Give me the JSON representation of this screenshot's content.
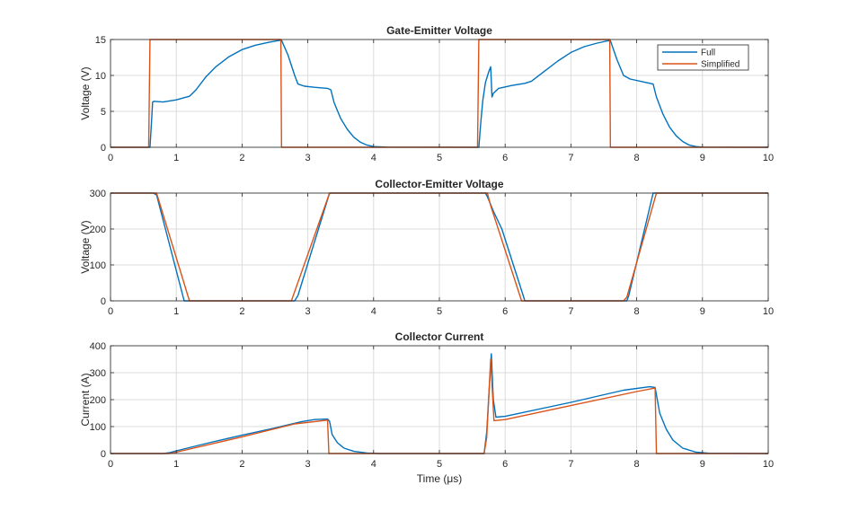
{
  "figure": {
    "series_names": [
      "Full",
      "Simplified"
    ],
    "colors": {
      "full": "#0072BD",
      "simplified": "#D95319",
      "grid": "#dcdcdc",
      "axis": "#262626"
    },
    "xlabel": "Time  (μs)"
  },
  "chart_data": [
    {
      "type": "line",
      "title": "Gate-Emitter Voltage",
      "xlabel": "",
      "ylabel": "Voltage (V)",
      "xlim": [
        0,
        10
      ],
      "ylim": [
        0,
        15
      ],
      "xticks": [
        0,
        1,
        2,
        3,
        4,
        5,
        6,
        7,
        8,
        9,
        10
      ],
      "yticks": [
        0,
        5,
        10,
        15
      ],
      "grid": true,
      "legend": "top-right",
      "series": [
        {
          "name": "Full",
          "points": [
            [
              0,
              0
            ],
            [
              0.595,
              0
            ],
            [
              0.6,
              0
            ],
            [
              0.62,
              3
            ],
            [
              0.64,
              6.3
            ],
            [
              0.66,
              6.4
            ],
            [
              0.8,
              6.3
            ],
            [
              1.0,
              6.6
            ],
            [
              1.2,
              7.1
            ],
            [
              1.3,
              8.0
            ],
            [
              1.45,
              9.8
            ],
            [
              1.6,
              11.2
            ],
            [
              1.8,
              12.6
            ],
            [
              2.0,
              13.6
            ],
            [
              2.2,
              14.2
            ],
            [
              2.4,
              14.6
            ],
            [
              2.55,
              14.85
            ],
            [
              2.6,
              14.9
            ],
            [
              2.7,
              12.8
            ],
            [
              2.8,
              10.0
            ],
            [
              2.85,
              8.8
            ],
            [
              2.95,
              8.5
            ],
            [
              3.1,
              8.35
            ],
            [
              3.3,
              8.2
            ],
            [
              3.35,
              8.0
            ],
            [
              3.4,
              6.2
            ],
            [
              3.5,
              4.0
            ],
            [
              3.6,
              2.5
            ],
            [
              3.7,
              1.4
            ],
            [
              3.8,
              0.7
            ],
            [
              3.9,
              0.3
            ],
            [
              4.0,
              0.1
            ],
            [
              4.2,
              0.02
            ],
            [
              5.595,
              0
            ],
            [
              5.6,
              0
            ],
            [
              5.63,
              3.5
            ],
            [
              5.66,
              6.5
            ],
            [
              5.7,
              9.0
            ],
            [
              5.75,
              10.5
            ],
            [
              5.78,
              11.2
            ],
            [
              5.8,
              7.0
            ],
            [
              5.82,
              7.5
            ],
            [
              5.9,
              8.2
            ],
            [
              6.1,
              8.6
            ],
            [
              6.3,
              8.9
            ],
            [
              6.4,
              9.2
            ],
            [
              6.6,
              10.6
            ],
            [
              6.8,
              12.0
            ],
            [
              7.0,
              13.2
            ],
            [
              7.2,
              14.0
            ],
            [
              7.4,
              14.5
            ],
            [
              7.55,
              14.8
            ],
            [
              7.6,
              14.85
            ],
            [
              7.7,
              12.2
            ],
            [
              7.8,
              10.0
            ],
            [
              7.9,
              9.5
            ],
            [
              8.1,
              9.1
            ],
            [
              8.25,
              8.8
            ],
            [
              8.3,
              7.0
            ],
            [
              8.4,
              4.6
            ],
            [
              8.5,
              2.8
            ],
            [
              8.6,
              1.6
            ],
            [
              8.7,
              0.8
            ],
            [
              8.8,
              0.3
            ],
            [
              8.9,
              0.1
            ],
            [
              9.0,
              0.02
            ],
            [
              10,
              0
            ]
          ]
        },
        {
          "name": "Simplified",
          "points": [
            [
              0,
              0
            ],
            [
              0.58,
              0
            ],
            [
              0.6,
              15
            ],
            [
              2.59,
              15
            ],
            [
              2.6,
              0
            ],
            [
              5.58,
              0
            ],
            [
              5.6,
              15
            ],
            [
              7.59,
              15
            ],
            [
              7.6,
              0
            ],
            [
              10,
              0
            ]
          ]
        }
      ]
    },
    {
      "type": "line",
      "title": "Collector-Emitter Voltage",
      "xlabel": "",
      "ylabel": "Voltage (V)",
      "xlim": [
        0,
        10
      ],
      "ylim": [
        0,
        300
      ],
      "xticks": [
        0,
        1,
        2,
        3,
        4,
        5,
        6,
        7,
        8,
        9,
        10
      ],
      "yticks": [
        0,
        100,
        200,
        300
      ],
      "grid": true,
      "series": [
        {
          "name": "Full",
          "points": [
            [
              0,
              300
            ],
            [
              0.65,
              300
            ],
            [
              0.7,
              295
            ],
            [
              1.12,
              0
            ],
            [
              2.8,
              0
            ],
            [
              2.85,
              15
            ],
            [
              3.33,
              300
            ],
            [
              5.7,
              300
            ],
            [
              5.73,
              290
            ],
            [
              5.78,
              268
            ],
            [
              5.82,
              250
            ],
            [
              5.95,
              200
            ],
            [
              6.3,
              0
            ],
            [
              7.85,
              0
            ],
            [
              7.88,
              15
            ],
            [
              8.25,
              300
            ],
            [
              10,
              300
            ]
          ]
        },
        {
          "name": "Simplified",
          "points": [
            [
              0,
              300
            ],
            [
              0.7,
              300
            ],
            [
              1.2,
              0
            ],
            [
              2.75,
              0
            ],
            [
              3.33,
              300
            ],
            [
              5.73,
              300
            ],
            [
              5.78,
              265
            ],
            [
              6.25,
              0
            ],
            [
              7.8,
              0
            ],
            [
              7.85,
              10
            ],
            [
              8.3,
              300
            ],
            [
              10,
              300
            ]
          ]
        }
      ]
    },
    {
      "type": "line",
      "title": "Collector Current",
      "xlabel": "Time  (μs)",
      "ylabel": "Current (A)",
      "xlim": [
        0,
        10
      ],
      "ylim": [
        0,
        400
      ],
      "xticks": [
        0,
        1,
        2,
        3,
        4,
        5,
        6,
        7,
        8,
        9,
        10
      ],
      "yticks": [
        0,
        100,
        200,
        300,
        400
      ],
      "grid": true,
      "series": [
        {
          "name": "Full",
          "points": [
            [
              0,
              0
            ],
            [
              0.8,
              0
            ],
            [
              0.9,
              3
            ],
            [
              1.0,
              10
            ],
            [
              1.5,
              40
            ],
            [
              2.0,
              68
            ],
            [
              2.5,
              95
            ],
            [
              2.9,
              118
            ],
            [
              3.1,
              126
            ],
            [
              3.3,
              128
            ],
            [
              3.33,
              120
            ],
            [
              3.37,
              70
            ],
            [
              3.45,
              40
            ],
            [
              3.55,
              20
            ],
            [
              3.7,
              8
            ],
            [
              3.9,
              2
            ],
            [
              4.1,
              0
            ],
            [
              5.68,
              0
            ],
            [
              5.72,
              80
            ],
            [
              5.76,
              250
            ],
            [
              5.79,
              370
            ],
            [
              5.82,
              200
            ],
            [
              5.86,
              135
            ],
            [
              6.0,
              138
            ],
            [
              7.0,
              190
            ],
            [
              7.8,
              235
            ],
            [
              8.2,
              248
            ],
            [
              8.28,
              245
            ],
            [
              8.35,
              150
            ],
            [
              8.45,
              90
            ],
            [
              8.55,
              50
            ],
            [
              8.7,
              20
            ],
            [
              8.9,
              5
            ],
            [
              9.1,
              1
            ],
            [
              10,
              0
            ]
          ]
        },
        {
          "name": "Simplified",
          "points": [
            [
              0,
              0
            ],
            [
              0.9,
              0
            ],
            [
              1.0,
              5
            ],
            [
              2.0,
              62
            ],
            [
              2.8,
              110
            ],
            [
              3.3,
              124
            ],
            [
              3.32,
              0
            ],
            [
              5.68,
              0
            ],
            [
              5.72,
              60
            ],
            [
              5.78,
              350
            ],
            [
              5.83,
              122
            ],
            [
              6.0,
              126
            ],
            [
              7.0,
              178
            ],
            [
              8.0,
              230
            ],
            [
              8.28,
              243
            ],
            [
              8.3,
              0
            ],
            [
              10,
              0
            ]
          ]
        }
      ]
    }
  ]
}
